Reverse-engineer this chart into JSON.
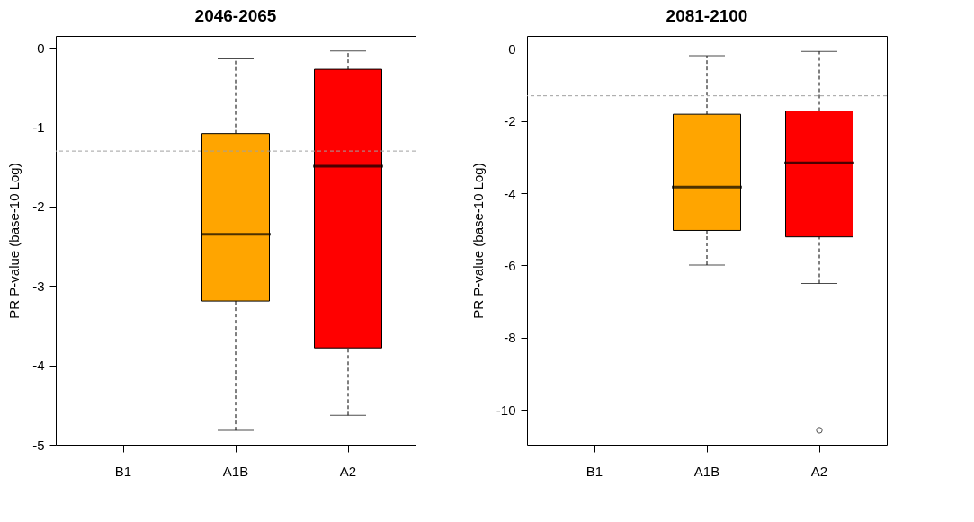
{
  "chart_data": [
    {
      "type": "box",
      "title": "2046-2065",
      "ylabel": "PR P-value (base-10 Log)",
      "categories": [
        "B1",
        "A1B",
        "A2"
      ],
      "colors": [
        null,
        "#ffa500",
        "#ff0000"
      ],
      "boxes": [
        null,
        {
          "low": -4.82,
          "q1": -3.19,
          "median": -2.35,
          "q3": -1.08,
          "high": -0.14
        },
        {
          "low": -4.63,
          "q1": -3.78,
          "median": -1.49,
          "q3": -0.27,
          "high": -0.04
        }
      ],
      "ylim": [
        -5.0,
        0.15
      ],
      "yticks": [
        -5,
        -4,
        -3,
        -2,
        -1,
        0
      ],
      "grid": false,
      "ref_lines": [
        {
          "axis": "y",
          "value": -1.3,
          "color": "#a0a0a0",
          "line_style": "dashed"
        }
      ]
    },
    {
      "type": "box",
      "title": "2081-2100",
      "ylabel": "PR P-value (base-10 Log)",
      "categories": [
        "B1",
        "A1B",
        "A2"
      ],
      "colors": [
        null,
        "#ffa500",
        "#ff0000"
      ],
      "boxes": [
        null,
        {
          "low": -5.99,
          "q1": -5.03,
          "median": -3.83,
          "q3": -1.81,
          "high": -0.19
        },
        {
          "low": -6.5,
          "q1": -5.21,
          "median": -3.16,
          "q3": -1.72,
          "high": -0.07,
          "outliers": [
            -10.57
          ]
        }
      ],
      "ylim": [
        -10.97,
        0.36
      ],
      "yticks": [
        -10,
        -8,
        -6,
        -4,
        -2,
        0
      ],
      "grid": false,
      "ref_lines": [
        {
          "axis": "y",
          "value": -1.3,
          "color": "#a0a0a0",
          "line_style": "dashed"
        }
      ]
    }
  ]
}
